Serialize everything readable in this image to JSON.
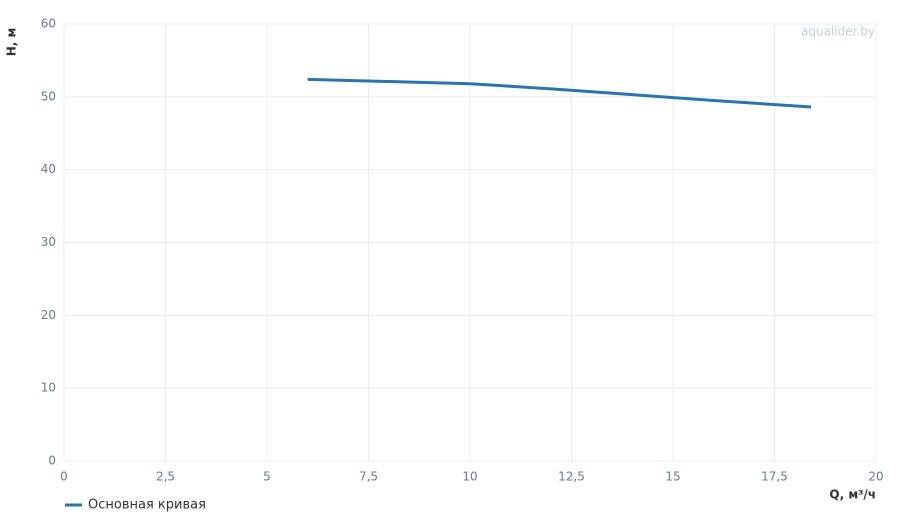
{
  "chart_data": {
    "type": "line",
    "x_label": "Q, м³/ч",
    "y_label": "H, м",
    "watermark": "aqualider.by",
    "x": [
      6.0,
      8.0,
      10.0,
      12.0,
      14.0,
      16.0,
      18.4
    ],
    "series": [
      {
        "name": "Основная кривая",
        "color": "#2a75b0",
        "values": [
          52.4,
          52.1,
          51.8,
          51.1,
          50.3,
          49.5,
          48.6
        ]
      }
    ],
    "xlim": [
      0,
      20
    ],
    "xticks": [
      0,
      {
        "value": 2.5,
        "label": "2,5"
      },
      5,
      {
        "value": 7.5,
        "label": "7,5"
      },
      10,
      {
        "value": 12.5,
        "label": "12,5"
      },
      15,
      {
        "value": 17.5,
        "label": "17,5"
      },
      20
    ],
    "ylim": [
      0,
      60
    ],
    "yticks": [
      0,
      10,
      20,
      30,
      40,
      50,
      60
    ],
    "grid": true,
    "legend": "bottom-left"
  }
}
